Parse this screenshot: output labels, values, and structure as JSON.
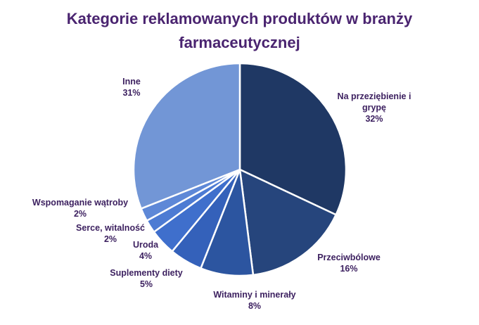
{
  "chart_data": {
    "type": "pie",
    "title_lines": [
      "Kategorie reklamowanych produktów w branży",
      "farmaceutycznej"
    ],
    "slices": [
      {
        "label_lines": [
          "Na przeziębienie i",
          "grypę"
        ],
        "pct_label": "32%",
        "value": 32,
        "color": "#1f3864"
      },
      {
        "label_lines": [
          "Przeciwbólowe"
        ],
        "pct_label": "16%",
        "value": 16,
        "color": "#26457c"
      },
      {
        "label_lines": [
          "Witaminy i minerały"
        ],
        "pct_label": "8%",
        "value": 8,
        "color": "#2c55a0"
      },
      {
        "label_lines": [
          "Suplementy diety"
        ],
        "pct_label": "5%",
        "value": 5,
        "color": "#3461ba"
      },
      {
        "label_lines": [
          "Uroda"
        ],
        "pct_label": "4%",
        "value": 4,
        "color": "#3f6fcc"
      },
      {
        "label_lines": [
          "Serce, witalność"
        ],
        "pct_label": "2%",
        "value": 2,
        "color": "#4d7bd3"
      },
      {
        "label_lines": [
          "Wspomaganie wątroby"
        ],
        "pct_label": "2%",
        "value": 2,
        "color": "#5e88d7"
      },
      {
        "label_lines": [
          "Inne"
        ],
        "pct_label": "31%",
        "value": 31,
        "color": "#7296d6"
      }
    ],
    "start_angle": "12 o'clock",
    "direction": "clockwise",
    "legend": "none"
  }
}
